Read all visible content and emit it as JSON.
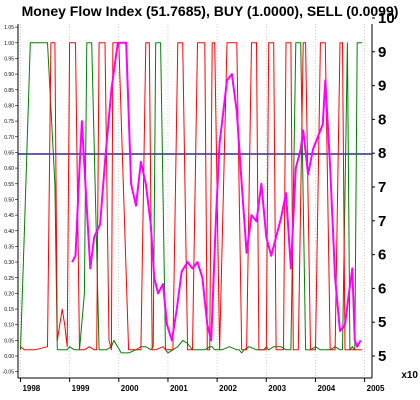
{
  "chart_data": {
    "type": "line",
    "title": "Money Flow Index (51.7685), BUY (1.0000), SELL (0.0099)",
    "y_ticks_left": [
      "1.05",
      "1.00",
      "0.95",
      "0.90",
      "0.85",
      "0.80",
      "0.75",
      "0.70",
      "0.65",
      "0.60",
      "0.55",
      "0.50",
      "0.45",
      "0.40",
      "0.35",
      "0.30",
      "0.25",
      "0.20",
      "0.15",
      "0.10",
      "0.05",
      "0.00",
      "-0.05"
    ],
    "y_ticks_right": [
      "10",
      "9",
      "9",
      "8",
      "8",
      "7",
      "7",
      "6",
      "6",
      "5",
      "5"
    ],
    "right_multiplier": "x10",
    "x_ticks": [
      "1998",
      "1999",
      "2000",
      "2001",
      "2002",
      "2003",
      "2004",
      "2005"
    ],
    "ylim": [
      -0.07,
      1.06
    ],
    "xlim": [
      1997.95,
      2005.15
    ],
    "reference_line": {
      "y": 0.645,
      "color": "#00008b"
    },
    "colors": {
      "buy": "#008000",
      "sell": "#ff0000",
      "mfi": "#ff00ff",
      "ref": "#00008b"
    },
    "series": [
      {
        "key": "buy",
        "x": [
          1998.0,
          1998.08,
          1998.2,
          1998.4,
          1998.55,
          1998.7,
          1998.75,
          1998.8,
          1998.9,
          1998.95,
          1999.0,
          1999.1,
          1999.2,
          1999.3,
          1999.35,
          1999.45,
          1999.6,
          1999.7,
          1999.75,
          1999.85,
          1999.9,
          2000.05,
          2000.2,
          2000.35,
          2000.45,
          2000.55,
          2000.65,
          2000.7,
          2000.75,
          2000.85,
          2000.95,
          2001.0,
          2001.1,
          2001.2,
          2001.3,
          2001.4,
          2001.5,
          2001.6,
          2001.75,
          2001.85,
          2001.9,
          2001.95,
          2002.0,
          2002.1,
          2002.25,
          2002.4,
          2002.45,
          2002.5,
          2002.55,
          2002.65,
          2002.8,
          2002.95,
          2003.0,
          2003.05,
          2003.15,
          2003.3,
          2003.4,
          2003.45,
          2003.5,
          2003.6,
          2003.7,
          2003.8,
          2003.9,
          2004.0,
          2004.1,
          2004.2,
          2004.3,
          2004.4,
          2004.5,
          2004.55,
          2004.65,
          2004.7,
          2004.75,
          2004.8,
          2004.85,
          2004.95
        ],
        "values": [
          0.02,
          0.4,
          1.0,
          1.0,
          1.0,
          0.55,
          0.02,
          0.02,
          0.02,
          0.02,
          0.03,
          0.02,
          0.02,
          0.2,
          1.0,
          1.0,
          0.02,
          0.02,
          0.02,
          0.03,
          0.05,
          0.01,
          0.01,
          0.02,
          0.03,
          0.03,
          0.02,
          0.03,
          1.0,
          1.0,
          0.02,
          0.01,
          0.02,
          0.03,
          0.05,
          0.04,
          0.02,
          0.02,
          0.02,
          0.03,
          0.03,
          0.02,
          0.02,
          0.02,
          0.03,
          0.02,
          0.02,
          0.01,
          0.02,
          0.03,
          0.02,
          0.02,
          0.03,
          0.02,
          0.03,
          0.03,
          0.02,
          0.02,
          0.02,
          1.0,
          1.0,
          0.02,
          0.02,
          0.03,
          0.02,
          0.02,
          0.02,
          0.03,
          0.02,
          0.02,
          1.0,
          0.02,
          0.03,
          0.02,
          1.0,
          1.0
        ]
      },
      {
        "key": "sell",
        "x": [
          1998.0,
          1998.08,
          1998.3,
          1998.55,
          1998.62,
          1998.7,
          1998.75,
          1998.85,
          1998.9,
          1998.95,
          1999.0,
          1999.05,
          1999.12,
          1999.2,
          1999.3,
          1999.4,
          1999.5,
          1999.55,
          1999.6,
          1999.72,
          1999.8,
          1999.85,
          1999.88,
          2000.0,
          2000.2,
          2000.35,
          2000.45,
          2000.55,
          2000.62,
          2000.68,
          2000.75,
          2000.9,
          2000.95,
          2001.1,
          2001.2,
          2001.3,
          2001.4,
          2001.5,
          2001.6,
          2001.75,
          2001.8,
          2001.85,
          2001.9,
          2001.95,
          2002.05,
          2002.2,
          2002.3,
          2002.4,
          2002.5,
          2002.6,
          2002.7,
          2002.8,
          2002.85,
          2002.9,
          2003.0,
          2003.05,
          2003.15,
          2003.2,
          2003.35,
          2003.4,
          2003.5,
          2003.55,
          2003.65,
          2003.75,
          2003.8,
          2003.9,
          2004.0,
          2004.1,
          2004.2,
          2004.3,
          2004.4,
          2004.5,
          2004.55,
          2004.6,
          2004.65,
          2004.7,
          2004.8,
          2004.85,
          2004.95
        ],
        "values": [
          0.03,
          0.02,
          0.02,
          0.03,
          1.0,
          1.0,
          0.05,
          0.15,
          0.1,
          0.03,
          1.0,
          1.0,
          1.0,
          0.02,
          0.02,
          0.03,
          0.02,
          0.02,
          1.0,
          1.0,
          0.05,
          0.02,
          1.0,
          1.0,
          0.02,
          0.02,
          0.02,
          1.0,
          1.0,
          0.02,
          0.02,
          0.03,
          0.02,
          0.02,
          1.0,
          1.0,
          0.02,
          0.02,
          1.0,
          1.0,
          0.02,
          0.02,
          1.0,
          1.0,
          0.02,
          1.0,
          1.0,
          1.0,
          0.02,
          0.02,
          1.0,
          1.0,
          0.02,
          0.02,
          0.02,
          1.0,
          1.0,
          0.02,
          0.02,
          1.0,
          1.0,
          0.02,
          0.02,
          1.0,
          1.0,
          0.02,
          0.02,
          1.0,
          1.0,
          0.02,
          0.02,
          1.0,
          1.0,
          0.02,
          0.02,
          0.02,
          0.02,
          0.02,
          0.02
        ]
      },
      {
        "key": "mfi",
        "x": [
          1999.05,
          1999.12,
          1999.2,
          1999.25,
          1999.32,
          1999.42,
          1999.5,
          1999.62,
          1999.72,
          1999.85,
          1999.98,
          2000.0,
          2000.15,
          2000.25,
          2000.35,
          2000.45,
          2000.55,
          2000.65,
          2000.72,
          2000.8,
          2000.9,
          2000.98,
          2001.08,
          2001.18,
          2001.28,
          2001.4,
          2001.5,
          2001.6,
          2001.7,
          2001.8,
          2001.88,
          2001.98,
          2002.05,
          2002.2,
          2002.3,
          2002.4,
          2002.5,
          2002.6,
          2002.7,
          2002.8,
          2002.9,
          2003.0,
          2003.1,
          2003.2,
          2003.3,
          2003.4,
          2003.5,
          2003.6,
          2003.7,
          2003.75,
          2003.85,
          2003.95,
          2004.05,
          2004.15,
          2004.2,
          2004.3,
          2004.4,
          2004.5,
          2004.6,
          2004.68,
          2004.75,
          2004.8,
          2004.85,
          2004.92
        ],
        "values": [
          0.3,
          0.32,
          0.6,
          0.75,
          0.55,
          0.28,
          0.38,
          0.42,
          0.62,
          0.85,
          1.0,
          1.0,
          1.0,
          0.55,
          0.48,
          0.62,
          0.55,
          0.42,
          0.25,
          0.2,
          0.23,
          0.1,
          0.05,
          0.15,
          0.27,
          0.3,
          0.28,
          0.3,
          0.25,
          0.1,
          0.05,
          0.45,
          0.68,
          0.88,
          0.9,
          0.78,
          0.55,
          0.33,
          0.45,
          0.43,
          0.55,
          0.38,
          0.32,
          0.38,
          0.44,
          0.52,
          0.28,
          0.6,
          0.66,
          0.72,
          0.58,
          0.66,
          0.7,
          0.74,
          0.88,
          0.6,
          0.25,
          0.08,
          0.1,
          0.2,
          0.28,
          0.05,
          0.03,
          0.05
        ]
      }
    ]
  }
}
